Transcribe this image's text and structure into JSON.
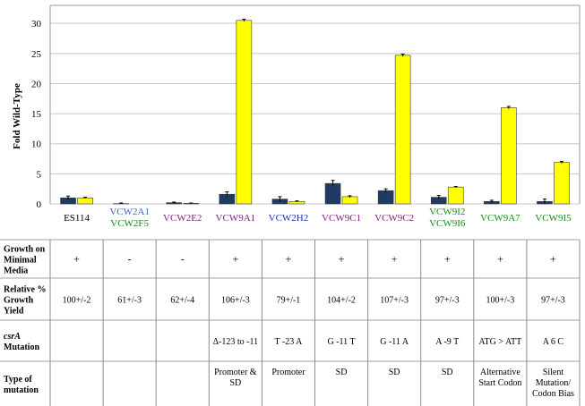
{
  "chart_data": {
    "type": "bar",
    "ylabel": "Fold Wild-Type",
    "ylim": [
      0,
      33
    ],
    "yticks": [
      0,
      5,
      10,
      15,
      20,
      25,
      30
    ],
    "grid": true,
    "categories": [
      {
        "lines": [
          "ES114"
        ],
        "colors": [
          "#000000"
        ]
      },
      {
        "lines": [
          "VCW2A1",
          "VCW2F5"
        ],
        "colors": [
          "#3a66c8",
          "#1a8a1a"
        ]
      },
      {
        "lines": [
          "VCW2E2"
        ],
        "colors": [
          "#7a1f7a"
        ]
      },
      {
        "lines": [
          "VCW9A1"
        ],
        "colors": [
          "#7a1f7a"
        ]
      },
      {
        "lines": [
          "VCW2H2"
        ],
        "colors": [
          "#1f2fb0"
        ]
      },
      {
        "lines": [
          "VCW9C1"
        ],
        "colors": [
          "#7a1f7a"
        ]
      },
      {
        "lines": [
          "VCW9C2"
        ],
        "colors": [
          "#7a1f7a"
        ]
      },
      {
        "lines": [
          "VCW9I2",
          "VCW9I6"
        ],
        "colors": [
          "#1a8a1a",
          "#1a8a1a"
        ]
      },
      {
        "lines": [
          "VCW9A7"
        ],
        "colors": [
          "#1a8a1a"
        ]
      },
      {
        "lines": [
          "VCW9I5"
        ],
        "colors": [
          "#1a8a1a"
        ]
      }
    ],
    "series": [
      {
        "color": "#1f3a63",
        "values": [
          1.0,
          0.05,
          0.2,
          1.6,
          0.8,
          3.4,
          2.2,
          1.1,
          0.4,
          0.4
        ],
        "errors": [
          0.3,
          0.1,
          0.1,
          0.4,
          0.4,
          0.5,
          0.3,
          0.3,
          0.2,
          0.4
        ]
      },
      {
        "color": "#ffff00",
        "values": [
          1.0,
          0.0,
          0.1,
          30.5,
          0.4,
          1.2,
          24.7,
          2.8,
          16.0,
          6.9
        ],
        "errors": [
          0.1,
          0.0,
          0.05,
          0.2,
          0.1,
          0.15,
          0.2,
          0.1,
          0.2,
          0.15
        ]
      }
    ]
  },
  "table": {
    "rows": [
      {
        "label_lines": [
          "Growth on",
          "Minimal",
          "Media"
        ],
        "italic_first": false,
        "cells": [
          [
            "+"
          ],
          [
            "-"
          ],
          [
            "-"
          ],
          [
            "+"
          ],
          [
            "+"
          ],
          [
            "+"
          ],
          [
            "+"
          ],
          [
            "+"
          ],
          [
            "+"
          ],
          [
            "+"
          ]
        ]
      },
      {
        "label_lines": [
          "Relative %",
          "Growth",
          "Yield"
        ],
        "italic_first": false,
        "cells": [
          [
            "100+/-2"
          ],
          [
            "61+/-3"
          ],
          [
            "62+/-4"
          ],
          [
            "106+/-3"
          ],
          [
            "79+/-1"
          ],
          [
            "104+/-2"
          ],
          [
            "107+/-3"
          ],
          [
            "97+/-3"
          ],
          [
            "100+/-3"
          ],
          [
            "97+/-3"
          ]
        ]
      },
      {
        "label_lines": [
          "csrA",
          "Mutation"
        ],
        "italic_first": true,
        "cells": [
          [
            ""
          ],
          [
            ""
          ],
          [
            ""
          ],
          [
            "Δ-123 to -11"
          ],
          [
            "T -23 A"
          ],
          [
            "G -11 T"
          ],
          [
            "G -11 A"
          ],
          [
            "A -9 T"
          ],
          [
            "ATG > ATT"
          ],
          [
            "A 6 C"
          ]
        ]
      },
      {
        "label_lines": [
          "Type of",
          "mutation"
        ],
        "italic_first": false,
        "cells": [
          [
            ""
          ],
          [
            ""
          ],
          [
            ""
          ],
          [
            "Promoter &",
            "SD"
          ],
          [
            "Promoter"
          ],
          [
            "SD"
          ],
          [
            "SD"
          ],
          [
            "SD"
          ],
          [
            "Alternative",
            "Start Codon"
          ],
          [
            "Silent",
            "Mutation/",
            "Codon Bias"
          ]
        ]
      }
    ]
  }
}
